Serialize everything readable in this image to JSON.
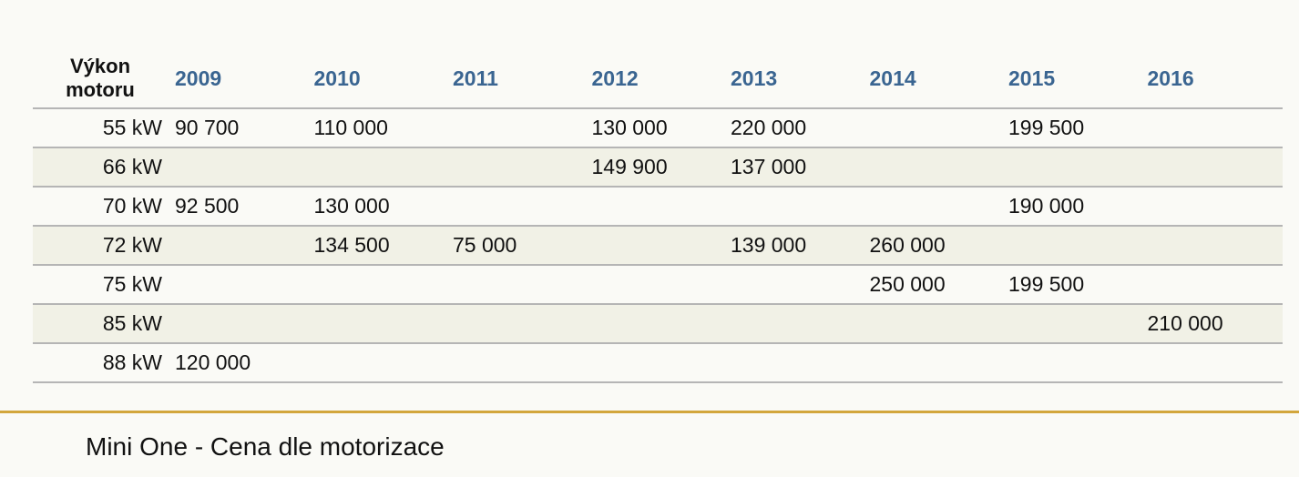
{
  "chart_data": {
    "type": "table",
    "row_header_label": "Výkon\nmotoru",
    "columns": [
      "2009",
      "2010",
      "2011",
      "2012",
      "2013",
      "2014",
      "2015",
      "2016"
    ],
    "rows": [
      {
        "power": "55 kW",
        "values": [
          "90 700",
          "110 000",
          "",
          "130 000",
          "220 000",
          "",
          "199 500",
          ""
        ]
      },
      {
        "power": "66 kW",
        "values": [
          "",
          "",
          "",
          "149 900",
          "137 000",
          "",
          "",
          ""
        ]
      },
      {
        "power": "70 kW",
        "values": [
          "92 500",
          "130 000",
          "",
          "",
          "",
          "",
          "190 000",
          ""
        ]
      },
      {
        "power": "72 kW",
        "values": [
          "",
          "134 500",
          "75 000",
          "",
          "139 000",
          "260 000",
          "",
          ""
        ]
      },
      {
        "power": "75 kW",
        "values": [
          "",
          "",
          "",
          "",
          "",
          "250 000",
          "199 500",
          ""
        ]
      },
      {
        "power": "85 kW",
        "values": [
          "",
          "",
          "",
          "",
          "",
          "",
          "",
          "210 000"
        ]
      },
      {
        "power": "88 kW",
        "values": [
          "120 000",
          "",
          "",
          "",
          "",
          "",
          "",
          ""
        ]
      }
    ],
    "caption": "Mini One - Cena dle motorizace"
  },
  "colors": {
    "background": "#fafaf6",
    "header_year": "#3a6591",
    "alt_row": "#f1f1e6",
    "row_rule": "#b5b5b5",
    "caption_rule": "#d2a63c"
  }
}
